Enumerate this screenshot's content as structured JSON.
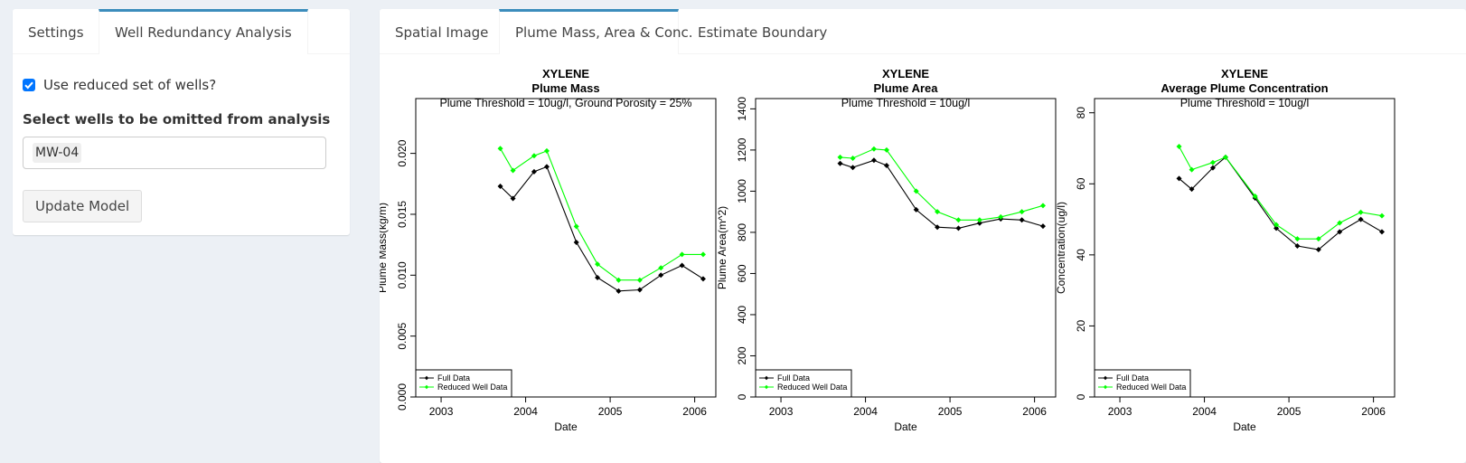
{
  "sidebar": {
    "tabs": [
      {
        "label": "Settings",
        "active": false
      },
      {
        "label": "Well Redundancy Analysis",
        "active": true
      }
    ],
    "checkbox_label": "Use reduced set of wells?",
    "checkbox_checked": true,
    "select_label": "Select wells to be omitted from analysis",
    "selected_wells": [
      "MW-04"
    ],
    "button_label": "Update Model"
  },
  "main": {
    "tabs": [
      {
        "label": "Spatial Image",
        "active": false
      },
      {
        "label": "Plume Mass, Area & Conc.",
        "active": true
      },
      {
        "label": "Estimate Boundary",
        "active": false
      }
    ]
  },
  "colors": {
    "accent": "#3c8dbc",
    "full_series": "#000000",
    "reduced_series": "#00ff00"
  },
  "chart_data": [
    {
      "type": "line",
      "title": "XYLENE",
      "subtitle": "Plume Mass",
      "annotation": "Plume Threshold = 10ug/l, Ground Porosity = 25%",
      "xlabel": "Date",
      "ylabel": "Plume Mass(kg/m)",
      "xlim": [
        2002.7,
        2006.25
      ],
      "ylim": [
        0,
        0.0245
      ],
      "xticks": [
        2003,
        2004,
        2005,
        2006
      ],
      "xtick_labels": [
        "2003",
        "2004",
        "2005",
        "2006"
      ],
      "yticks": [
        0,
        0.005,
        0.01,
        0.015,
        0.02
      ],
      "ytick_labels": [
        "0.000",
        "0.005",
        "0.010",
        "0.015",
        "0.020"
      ],
      "legend_position": "bottom-left",
      "legend": [
        "Full Data",
        "Reduced Well Data"
      ],
      "series": [
        {
          "name": "Full Data",
          "color": "#000000",
          "x": [
            2003.7,
            2003.85,
            2004.1,
            2004.25,
            2004.6,
            2004.85,
            2005.1,
            2005.35,
            2005.6,
            2005.85,
            2006.1
          ],
          "y": [
            0.0173,
            0.0163,
            0.0185,
            0.0189,
            0.0127,
            0.0098,
            0.0087,
            0.0088,
            0.01,
            0.0108,
            0.0097
          ]
        },
        {
          "name": "Reduced Well Data",
          "color": "#00ff00",
          "x": [
            2003.7,
            2003.85,
            2004.1,
            2004.25,
            2004.6,
            2004.85,
            2005.1,
            2005.35,
            2005.6,
            2005.85,
            2006.1
          ],
          "y": [
            0.0204,
            0.0186,
            0.0198,
            0.0202,
            0.014,
            0.0109,
            0.0096,
            0.0096,
            0.0106,
            0.0117,
            0.0117
          ]
        }
      ]
    },
    {
      "type": "line",
      "title": "XYLENE",
      "subtitle": "Plume Area",
      "annotation": "Plume Threshold = 10ug/l",
      "xlabel": "Date",
      "ylabel": "Plume Area(m^2)",
      "xlim": [
        2002.7,
        2006.25
      ],
      "ylim": [
        0,
        1450
      ],
      "xticks": [
        2003,
        2004,
        2005,
        2006
      ],
      "xtick_labels": [
        "2003",
        "2004",
        "2005",
        "2006"
      ],
      "yticks": [
        0,
        200,
        400,
        600,
        800,
        1000,
        1200,
        1400
      ],
      "ytick_labels": [
        "0",
        "200",
        "400",
        "600",
        "800",
        "1000",
        "1200",
        "1400"
      ],
      "legend_position": "bottom-left",
      "legend": [
        "Full Data",
        "Reduced Well Data"
      ],
      "series": [
        {
          "name": "Full Data",
          "color": "#000000",
          "x": [
            2003.7,
            2003.85,
            2004.1,
            2004.25,
            2004.6,
            2004.85,
            2005.1,
            2005.35,
            2005.6,
            2005.85,
            2006.1
          ],
          "y": [
            1135,
            1115,
            1150,
            1125,
            910,
            825,
            820,
            845,
            865,
            860,
            830
          ]
        },
        {
          "name": "Reduced Well Data",
          "color": "#00ff00",
          "x": [
            2003.7,
            2003.85,
            2004.1,
            2004.25,
            2004.6,
            2004.85,
            2005.1,
            2005.35,
            2005.6,
            2005.85,
            2006.1
          ],
          "y": [
            1165,
            1160,
            1205,
            1200,
            1000,
            900,
            860,
            860,
            875,
            900,
            930
          ]
        }
      ]
    },
    {
      "type": "line",
      "title": "XYLENE",
      "subtitle": "Average Plume Concentration",
      "annotation": "Plume Threshold = 10ug/l",
      "xlabel": "Date",
      "ylabel": "Concentration(ug/l)",
      "xlim": [
        2002.7,
        2006.25
      ],
      "ylim": [
        0,
        84
      ],
      "xticks": [
        2003,
        2004,
        2005,
        2006
      ],
      "xtick_labels": [
        "2003",
        "2004",
        "2005",
        "2006"
      ],
      "yticks": [
        0,
        20,
        40,
        60,
        80
      ],
      "ytick_labels": [
        "0",
        "20",
        "40",
        "60",
        "80"
      ],
      "legend_position": "bottom-left",
      "legend": [
        "Full Data",
        "Reduced Well Data"
      ],
      "series": [
        {
          "name": "Full Data",
          "color": "#000000",
          "x": [
            2003.7,
            2003.85,
            2004.1,
            2004.25,
            2004.6,
            2004.85,
            2005.1,
            2005.35,
            2005.6,
            2005.85,
            2006.1
          ],
          "y": [
            61.5,
            58.5,
            64.5,
            67.5,
            56,
            47.5,
            42.5,
            41.5,
            46.5,
            50,
            46.5
          ]
        },
        {
          "name": "Reduced Well Data",
          "color": "#00ff00",
          "x": [
            2003.7,
            2003.85,
            2004.1,
            2004.25,
            2004.6,
            2004.85,
            2005.1,
            2005.35,
            2005.6,
            2005.85,
            2006.1
          ],
          "y": [
            70.5,
            64,
            66,
            67.5,
            56.5,
            48.5,
            44.5,
            44.5,
            49,
            52,
            51
          ]
        }
      ]
    }
  ]
}
